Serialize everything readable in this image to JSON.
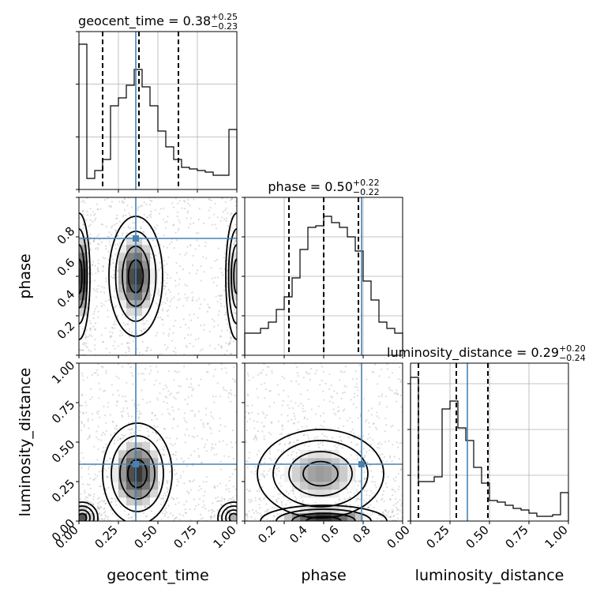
{
  "chart_data": {
    "type": "corner",
    "parameters": [
      "geocent_time",
      "phase",
      "luminosity_distance"
    ],
    "truths": {
      "geocent_time": 0.36,
      "phase": 0.74,
      "luminosity_distance": 0.36
    },
    "colors": {
      "truth": "#4682b4",
      "contour": "#000000",
      "hist": "#000000",
      "grid": "#b0b0b0"
    },
    "diagonal": [
      {
        "param": "geocent_time",
        "title_main": "geocent_time = 0.38",
        "title_sup": "+0.25",
        "title_sub": "−0.23",
        "range": [
          0,
          1
        ],
        "quantiles": [
          0.15,
          0.38,
          0.63
        ],
        "bin_edges": [
          0,
          0.05,
          0.1,
          0.15,
          0.2,
          0.25,
          0.3,
          0.35,
          0.4,
          0.45,
          0.5,
          0.55,
          0.6,
          0.65,
          0.7,
          0.75,
          0.8,
          0.85,
          0.9,
          0.95,
          1.0
        ],
        "heights": [
          0.92,
          0.07,
          0.12,
          0.19,
          0.53,
          0.58,
          0.66,
          0.76,
          0.65,
          0.53,
          0.37,
          0.27,
          0.19,
          0.14,
          0.13,
          0.12,
          0.11,
          0.09,
          0.09,
          0.38
        ],
        "ylim": [
          0,
          1
        ],
        "yticks": [
          0,
          0.333,
          0.667,
          1.0
        ]
      },
      {
        "param": "phase",
        "title_main": "phase = 0.50",
        "title_sup": "+0.22",
        "title_sub": "−0.22",
        "range": [
          0,
          1
        ],
        "quantiles": [
          0.28,
          0.5,
          0.72
        ],
        "bin_edges": [
          0,
          0.05,
          0.1,
          0.15,
          0.2,
          0.25,
          0.3,
          0.35,
          0.4,
          0.45,
          0.5,
          0.55,
          0.6,
          0.65,
          0.7,
          0.75,
          0.8,
          0.85,
          0.9,
          0.95,
          1.0
        ],
        "heights": [
          0.14,
          0.14,
          0.17,
          0.21,
          0.29,
          0.37,
          0.49,
          0.67,
          0.81,
          0.82,
          0.88,
          0.84,
          0.81,
          0.75,
          0.66,
          0.47,
          0.35,
          0.21,
          0.17,
          0.14
        ],
        "ylim": [
          0,
          1
        ],
        "yticks": [
          0,
          0.25,
          0.5,
          0.75,
          1.0
        ]
      },
      {
        "param": "luminosity_distance",
        "title_main": "luminosity_distance = 0.29",
        "title_sup": "+0.20",
        "title_sub": "−0.24",
        "range": [
          0,
          1
        ],
        "quantiles": [
          0.05,
          0.29,
          0.49
        ],
        "bin_edges": [
          0,
          0.05,
          0.1,
          0.15,
          0.2,
          0.25,
          0.3,
          0.35,
          0.4,
          0.45,
          0.5,
          0.55,
          0.6,
          0.65,
          0.7,
          0.75,
          0.8,
          0.85,
          0.9,
          0.95,
          1.0
        ],
        "heights": [
          0.91,
          0.25,
          0.25,
          0.28,
          0.71,
          0.76,
          0.59,
          0.51,
          0.34,
          0.24,
          0.13,
          0.12,
          0.1,
          0.08,
          0.07,
          0.05,
          0.03,
          0.03,
          0.04,
          0.18
        ],
        "ylim": [
          0,
          1
        ],
        "yticks": [
          0,
          0.29,
          0.58,
          0.87
        ]
      }
    ],
    "panels": [
      {
        "x": "geocent_time",
        "y": "phase",
        "xlim": [
          0,
          1
        ],
        "ylim": [
          0,
          1
        ],
        "yticks": [
          0.2,
          0.4,
          0.6,
          0.8
        ],
        "modes": [
          {
            "cx": 0.36,
            "cy": 0.5,
            "sx": 0.085,
            "sy": 0.19,
            "amp": 1.0
          },
          {
            "cx": 0.0,
            "cy": 0.5,
            "sx": 0.035,
            "sy": 0.2,
            "amp": 1.2
          },
          {
            "cx": 1.0,
            "cy": 0.5,
            "sx": 0.035,
            "sy": 0.2,
            "amp": 0.7
          }
        ]
      },
      {
        "x": "geocent_time",
        "y": "luminosity_distance",
        "xlim": [
          0,
          1
        ],
        "ylim": [
          0,
          1
        ],
        "xticks": [
          0.0,
          0.25,
          0.5,
          0.75,
          1.0
        ],
        "xticklabels": [
          "0.00",
          "0.25",
          "0.50",
          "0.75",
          "1.00"
        ],
        "yticks": [
          0.0,
          0.25,
          0.5,
          0.75,
          1.0
        ],
        "yticklabels": [
          "0.00",
          "0.25",
          "0.50",
          "0.75",
          "1.00"
        ],
        "modes": [
          {
            "cx": 0.37,
            "cy": 0.3,
            "sx": 0.11,
            "sy": 0.16,
            "amp": 1.0
          },
          {
            "cx": 0.02,
            "cy": 0.02,
            "sx": 0.05,
            "sy": 0.05,
            "amp": 0.9
          },
          {
            "cx": 0.98,
            "cy": 0.02,
            "sx": 0.05,
            "sy": 0.05,
            "amp": 0.6
          }
        ]
      },
      {
        "x": "phase",
        "y": "luminosity_distance",
        "xlim": [
          0,
          1
        ],
        "ylim": [
          0,
          1
        ],
        "xticks": [
          0.2,
          0.4,
          0.6,
          0.8
        ],
        "xticklabels": [
          "0.2",
          "0.4",
          "0.6",
          "0.8"
        ],
        "modes": [
          {
            "cx": 0.48,
            "cy": 0.3,
            "sx": 0.2,
            "sy": 0.14,
            "amp": 1.0
          },
          {
            "cx": 0.5,
            "cy": 0.0,
            "sx": 0.2,
            "sy": 0.05,
            "amp": 1.5
          }
        ]
      }
    ],
    "diag_xticks": {
      "luminosity_distance": {
        "values": [
          0.0,
          0.25,
          0.5,
          0.75,
          1.0
        ],
        "labels": [
          "0.00",
          "0.25",
          "0.50",
          "0.75",
          "1.00"
        ]
      }
    },
    "ylabels": {
      "phase": "phase",
      "luminosity_distance": "luminosity_distance"
    },
    "xlabels": {
      "geocent_time": "geocent_time",
      "phase": "phase",
      "luminosity_distance": "luminosity_distance"
    },
    "yticklabels": {
      "phase": [
        "0.2",
        "0.4",
        "0.6",
        "0.8"
      ]
    }
  }
}
